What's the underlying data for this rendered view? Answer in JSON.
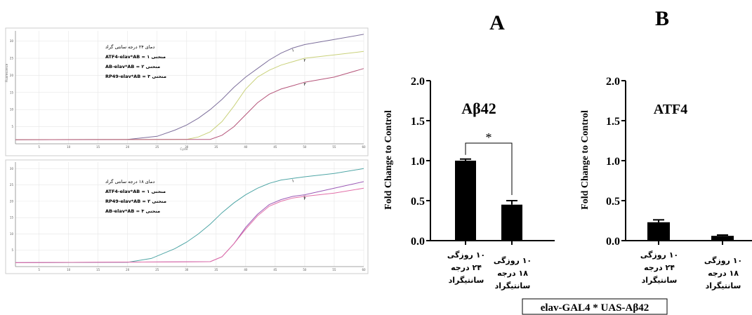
{
  "figure": {
    "panel_labels": [
      "A",
      "B"
    ],
    "genotype_box": "elav-GAL4 * UAS-Aβ42"
  },
  "chart_data": [
    {
      "type": "line",
      "id": "qpcr_24",
      "xlabel": "Cycle",
      "ylabel": "Fluorescence",
      "x_ticks": [
        5,
        10,
        15,
        20,
        25,
        30,
        35,
        40,
        45,
        50,
        55,
        60
      ],
      "y_ticks": [
        5,
        10,
        15,
        20,
        25,
        30
      ],
      "xlim": [
        1,
        60
      ],
      "ylim": [
        0,
        33
      ],
      "grid": true,
      "legend": [
        "دمای ۲۴ درجه سانتی گراد",
        "منحنی ۱ = ATF4-elav*AB",
        "منحنی ۲ = AB-elav*AB",
        "منحنی ۳ = RP49-elav*AB"
      ],
      "legend_placement": "top-left",
      "series": [
        {
          "label": "۱",
          "color": "#7d6f9c",
          "x": [
            1,
            20,
            25,
            28,
            30,
            32,
            34,
            36,
            38,
            40,
            42,
            44,
            46,
            48,
            50,
            55,
            60
          ],
          "y": [
            1.2,
            1.3,
            2.2,
            4,
            5.5,
            7.5,
            10,
            13,
            16.5,
            19.5,
            22,
            24.5,
            26.5,
            28,
            29,
            30.5,
            32
          ]
        },
        {
          "label": "۲",
          "color": "#c9d17a",
          "x": [
            1,
            30,
            32,
            34,
            36,
            38,
            40,
            42,
            44,
            46,
            48,
            50,
            55,
            60
          ],
          "y": [
            1.2,
            1.3,
            2,
            3.5,
            6.5,
            11,
            16,
            19.5,
            21.5,
            23,
            24,
            25,
            26,
            27
          ]
        },
        {
          "label": "۳",
          "color": "#b5557a",
          "x": [
            1,
            34,
            36,
            38,
            40,
            42,
            44,
            46,
            48,
            50,
            55,
            60
          ],
          "y": [
            1.2,
            1.3,
            2.5,
            5,
            8.5,
            12,
            14.5,
            16,
            17,
            18,
            19.5,
            22
          ]
        }
      ]
    },
    {
      "type": "line",
      "id": "qpcr_18",
      "x_ticks": [
        5,
        10,
        15,
        20,
        25,
        30,
        35,
        40,
        45,
        50,
        55,
        60
      ],
      "y_ticks": [
        5,
        10,
        15,
        20,
        25,
        30
      ],
      "xlim": [
        1,
        60
      ],
      "ylim": [
        0,
        32
      ],
      "grid": true,
      "legend": [
        "دمای ۱۸ درجه سانتی گراد",
        "منحنی ۱ = ATF4-elav*AB",
        "منحنی ۲ = RP49-elav*AB",
        "منحنی ۳ = AB-elav*AB"
      ],
      "legend_placement": "top-left",
      "series": [
        {
          "label": "۱",
          "color": "#4fa6a6",
          "x": [
            1,
            20,
            24,
            26,
            28,
            30,
            32,
            34,
            36,
            38,
            40,
            42,
            44,
            46,
            48,
            50,
            55,
            60
          ],
          "y": [
            1.2,
            1.3,
            2.5,
            4,
            5.5,
            7.5,
            10,
            13,
            16.5,
            19.5,
            22,
            24,
            25.5,
            26.5,
            27,
            27.5,
            28.5,
            30
          ]
        },
        {
          "label": "۲",
          "color": "#9b59b6",
          "x": [
            1,
            34,
            36,
            38,
            40,
            42,
            44,
            46,
            48,
            50,
            55,
            60
          ],
          "y": [
            1.2,
            1.5,
            3,
            7,
            12,
            16,
            19,
            20.5,
            21.5,
            22,
            24,
            26
          ]
        },
        {
          "label": "۳",
          "color": "#e26fa8",
          "x": [
            1,
            34,
            36,
            38,
            40,
            42,
            44,
            46,
            48,
            50,
            55,
            60
          ],
          "y": [
            1.2,
            1.5,
            3,
            7,
            11.5,
            15.5,
            18.5,
            20,
            21,
            21.5,
            22.5,
            24
          ]
        }
      ]
    },
    {
      "type": "bar",
      "id": "abeta42",
      "title": "Aβ42",
      "ylabel": "Fold Change to Control",
      "ylim": [
        0,
        2.0
      ],
      "y_ticks": [
        "0.0",
        "0.5",
        "1.0",
        "1.5",
        "2.0"
      ],
      "categories": [
        [
          "۱۰ روزگی",
          "۲۴ درجه",
          "سانتیگراد"
        ],
        [
          "۱۰ روزگی",
          "۱۸ درجه",
          "سانتیگراد"
        ]
      ],
      "values": [
        1.0,
        0.45
      ],
      "errors": [
        0.02,
        0.05
      ],
      "significance": "*"
    },
    {
      "type": "bar",
      "id": "atf4",
      "title": "ATF4",
      "ylabel": "Fold Change to Control",
      "ylim": [
        0,
        2.0
      ],
      "y_ticks": [
        "0.0",
        "0.5",
        "1.0",
        "1.5",
        "2.0"
      ],
      "categories": [
        [
          "۱۰ روزگی",
          "۲۴ درجه",
          "سانتیگراد"
        ],
        [
          "۱۰ روزگی",
          "۱۸ درجه",
          "سانتیگراد"
        ]
      ],
      "values": [
        0.23,
        0.06
      ],
      "errors": [
        0.03,
        0.01
      ]
    }
  ]
}
